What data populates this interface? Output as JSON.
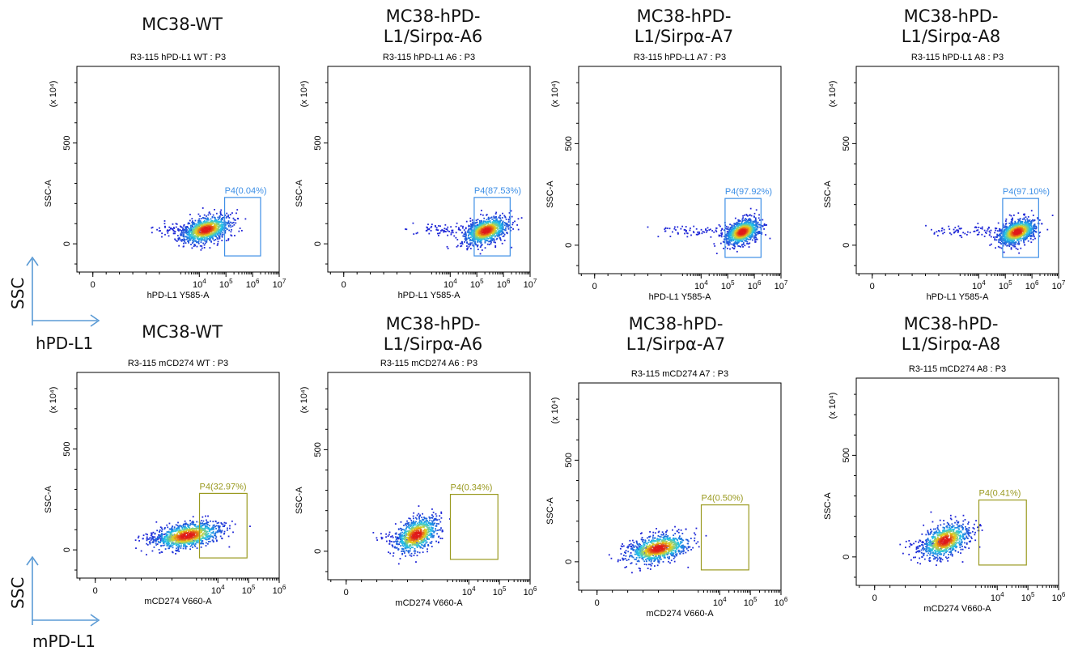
{
  "side_labels": {
    "row1_y": "SSC",
    "row1_x": "hPD-L1",
    "row2_y": "SSC",
    "row2_x": "mPD-L1",
    "arrow_color": "#5b9bd5"
  },
  "colors": {
    "gate_row1": "#3d8fe6",
    "gate_row2": "#9a9a20",
    "density_low": "#1f1fd6",
    "density_mid": "#21c7e8",
    "density_high": "#e8d21a",
    "density_peak": "#e01a1a"
  },
  "chart_data": [
    {
      "type": "scatter",
      "panel_title": [
        "MC38-WT"
      ],
      "title": "R3-115 hPD-L1 WT : P3",
      "xlabel": "hPD-L1 Y585-A",
      "ylabel": "SSC-A",
      "y_exponent_label": "(x 10⁴)",
      "x_ticks": [
        {
          "v": 0,
          "base": "0",
          "exp": ""
        },
        {
          "v": 4,
          "base": "10",
          "exp": "4"
        },
        {
          "v": 5,
          "base": "10",
          "exp": "5"
        },
        {
          "v": 6,
          "base": "10",
          "exp": "6"
        },
        {
          "v": 7,
          "base": "10",
          "exp": "7"
        }
      ],
      "y_ticks": [
        {
          "v": 0,
          "label": "0"
        },
        {
          "v": 500,
          "label": "500"
        }
      ],
      "xlim": [
        -0.6,
        7.0
      ],
      "ylim": [
        -140,
        880
      ],
      "gate": {
        "label": "P4(0.04%)",
        "x": [
          4.95,
          6.3
        ],
        "y": [
          -60,
          230
        ]
      },
      "population": {
        "cx": 4.25,
        "cy": 70,
        "sx": 0.45,
        "sy": 30,
        "tail_x": 2.5,
        "tail_y": 70,
        "n": 1000
      }
    },
    {
      "type": "scatter",
      "panel_title": [
        "MC38-hPD-",
        "L1/Sirpα-A6"
      ],
      "title": "R3-115 hPD-L1 A6 : P3",
      "xlabel": "hPD-L1 Y585-A",
      "ylabel": "SSC-A",
      "y_exponent_label": "(x 10⁴)",
      "x_ticks": [
        {
          "v": 0,
          "base": "0",
          "exp": ""
        },
        {
          "v": 4,
          "base": "10",
          "exp": "4"
        },
        {
          "v": 5,
          "base": "10",
          "exp": "5"
        },
        {
          "v": 6,
          "base": "10",
          "exp": "6"
        },
        {
          "v": 7,
          "base": "10",
          "exp": "7"
        }
      ],
      "y_ticks": [
        {
          "v": 0,
          "label": "0"
        },
        {
          "v": 500,
          "label": "500"
        }
      ],
      "xlim": [
        -0.6,
        7.0
      ],
      "ylim": [
        -140,
        880
      ],
      "gate": {
        "label": "P4(87.53%)",
        "x": [
          4.9,
          6.25
        ],
        "y": [
          -60,
          230
        ]
      },
      "population": {
        "cx": 5.35,
        "cy": 65,
        "sx": 0.4,
        "sy": 30,
        "tail_x": 2.8,
        "tail_y": 70,
        "n": 1000
      }
    },
    {
      "type": "scatter",
      "panel_title": [
        "MC38-hPD-",
        "L1/Sirpα-A7"
      ],
      "title": "R3-115 hPD-L1 A7 : P3",
      "xlabel": "hPD-L1 Y585-A",
      "ylabel": "SSC-A",
      "y_exponent_label": "(x 10⁴)",
      "x_ticks": [
        {
          "v": 0,
          "base": "0",
          "exp": ""
        },
        {
          "v": 4,
          "base": "10",
          "exp": "4"
        },
        {
          "v": 5,
          "base": "10",
          "exp": "5"
        },
        {
          "v": 6,
          "base": "10",
          "exp": "6"
        },
        {
          "v": 7,
          "base": "10",
          "exp": "7"
        }
      ],
      "y_ticks": [
        {
          "v": 0,
          "label": "0"
        },
        {
          "v": 500,
          "label": "500"
        }
      ],
      "xlim": [
        -0.6,
        7.0
      ],
      "ylim": [
        -140,
        880
      ],
      "gate": {
        "label": "P4(97.92%)",
        "x": [
          4.9,
          6.25
        ],
        "y": [
          -60,
          230
        ]
      },
      "population": {
        "cx": 5.55,
        "cy": 65,
        "sx": 0.32,
        "sy": 28,
        "tail_x": 2.4,
        "tail_y": 70,
        "n": 1000
      }
    },
    {
      "type": "scatter",
      "panel_title": [
        "MC38-hPD-",
        "L1/Sirpα-A8"
      ],
      "title": "R3-115 hPD-L1 A8 : P3",
      "xlabel": "hPD-L1 Y585-A",
      "ylabel": "SSC-A",
      "y_exponent_label": "(x 10⁴)",
      "x_ticks": [
        {
          "v": 0,
          "base": "0",
          "exp": ""
        },
        {
          "v": 4,
          "base": "10",
          "exp": "4"
        },
        {
          "v": 5,
          "base": "10",
          "exp": "5"
        },
        {
          "v": 6,
          "base": "10",
          "exp": "6"
        },
        {
          "v": 7,
          "base": "10",
          "exp": "7"
        }
      ],
      "y_ticks": [
        {
          "v": 0,
          "label": "0"
        },
        {
          "v": 500,
          "label": "500"
        }
      ],
      "xlim": [
        -0.6,
        7.0
      ],
      "ylim": [
        -140,
        880
      ],
      "gate": {
        "label": "P4(97.10%)",
        "x": [
          4.9,
          6.25
        ],
        "y": [
          -60,
          230
        ]
      },
      "population": {
        "cx": 5.45,
        "cy": 65,
        "sx": 0.35,
        "sy": 28,
        "tail_x": 2.2,
        "tail_y": 70,
        "n": 1000
      }
    },
    {
      "type": "scatter",
      "panel_title": [
        "MC38-WT"
      ],
      "title": "R3-115 mCD274 WT : P3",
      "xlabel": "mCD274 V660-A",
      "ylabel": "SSC-A",
      "y_exponent_label": "(x 10⁴)",
      "x_ticks": [
        {
          "v": 0,
          "base": "0",
          "exp": ""
        },
        {
          "v": 4,
          "base": "10",
          "exp": "4"
        },
        {
          "v": 5,
          "base": "10",
          "exp": "5"
        },
        {
          "v": 6,
          "base": "10",
          "exp": "6"
        }
      ],
      "y_ticks": [
        {
          "v": 0,
          "label": "0"
        },
        {
          "v": 500,
          "label": "500"
        }
      ],
      "xlim": [
        -0.6,
        6.0
      ],
      "ylim": [
        -140,
        880
      ],
      "gate": {
        "label": "P4(32.97%)",
        "x": [
          3.4,
          4.95
        ],
        "y": [
          -40,
          280
        ]
      },
      "population": {
        "cx": 3.0,
        "cy": 70,
        "sx": 0.55,
        "sy": 30,
        "tail_x": 1.8,
        "tail_y": 60,
        "n": 1000
      }
    },
    {
      "type": "scatter",
      "panel_title": [
        "MC38-hPD-",
        "L1/Sirpα-A6"
      ],
      "title": "R3-115 mCD274 A6 : P3",
      "xlabel": "mCD274 V660-A",
      "ylabel": "SSC-A",
      "y_exponent_label": "(x 10⁴)",
      "x_ticks": [
        {
          "v": 0,
          "base": "0",
          "exp": ""
        },
        {
          "v": 4,
          "base": "10",
          "exp": "4"
        },
        {
          "v": 5,
          "base": "10",
          "exp": "5"
        },
        {
          "v": 6,
          "base": "10",
          "exp": "6"
        }
      ],
      "y_ticks": [
        {
          "v": 0,
          "label": "0"
        },
        {
          "v": 500,
          "label": "500"
        }
      ],
      "xlim": [
        -0.6,
        6.0
      ],
      "ylim": [
        -140,
        880
      ],
      "gate": {
        "label": "P4(0.34%)",
        "x": [
          3.4,
          4.95
        ],
        "y": [
          -40,
          280
        ]
      },
      "population": {
        "cx": 2.3,
        "cy": 80,
        "sx": 0.35,
        "sy": 40,
        "tail_x": 1.5,
        "tail_y": 60,
        "n": 800
      }
    },
    {
      "type": "scatter",
      "panel_title": [
        "MC38-hPD-",
        "L1/Sirpα-A7"
      ],
      "title": "R3-115 mCD274 A7 : P3",
      "xlabel": "mCD274 V660-A",
      "ylabel": "SSC-A",
      "y_exponent_label": "(x 10⁴)",
      "x_ticks": [
        {
          "v": 0,
          "base": "0",
          "exp": ""
        },
        {
          "v": 4,
          "base": "10",
          "exp": "4"
        },
        {
          "v": 5,
          "base": "10",
          "exp": "5"
        },
        {
          "v": 6,
          "base": "10",
          "exp": "6"
        }
      ],
      "y_ticks": [
        {
          "v": 0,
          "label": "0"
        },
        {
          "v": 500,
          "label": "500"
        }
      ],
      "xlim": [
        -0.6,
        6.0
      ],
      "ylim": [
        -140,
        880
      ],
      "gate": {
        "label": "P4(0.50%)",
        "x": [
          3.4,
          4.95
        ],
        "y": [
          -40,
          280
        ]
      },
      "population": {
        "cx": 2.0,
        "cy": 65,
        "sx": 0.5,
        "sy": 32,
        "tail_x": 1.5,
        "tail_y": 60,
        "n": 900
      }
    },
    {
      "type": "scatter",
      "panel_title": [
        "MC38-hPD-",
        "L1/Sirpα-A8"
      ],
      "title": "R3-115 mCD274 A8 : P3",
      "xlabel": "mCD274 V660-A",
      "ylabel": "SSC-A",
      "y_exponent_label": "(x 10⁴)",
      "x_ticks": [
        {
          "v": 0,
          "base": "0",
          "exp": ""
        },
        {
          "v": 4,
          "base": "10",
          "exp": "4"
        },
        {
          "v": 5,
          "base": "10",
          "exp": "5"
        },
        {
          "v": 6,
          "base": "10",
          "exp": "6"
        }
      ],
      "y_ticks": [
        {
          "v": 0,
          "label": "0"
        },
        {
          "v": 500,
          "label": "500"
        }
      ],
      "xlim": [
        -0.6,
        6.0
      ],
      "ylim": [
        -140,
        880
      ],
      "gate": {
        "label": "P4(0.41%)",
        "x": [
          3.4,
          4.95
        ],
        "y": [
          -40,
          280
        ]
      },
      "population": {
        "cx": 2.3,
        "cy": 80,
        "sx": 0.38,
        "sy": 38,
        "tail_x": 1.4,
        "tail_y": 60,
        "n": 850
      }
    }
  ]
}
